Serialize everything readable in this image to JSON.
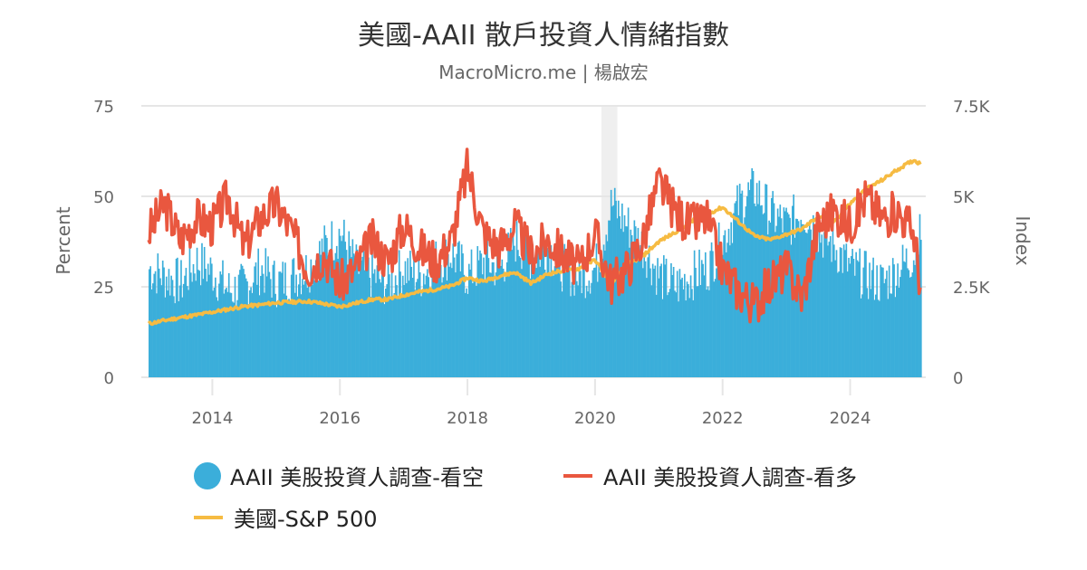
{
  "header": {
    "title": "美國-AAII 散戶投資人情緒指數",
    "subtitle": "MacroMicro.me | 楊啟宏"
  },
  "colors": {
    "bearish": "#3BAEDA",
    "bullish": "#E9573F",
    "sp500": "#F6BB42",
    "grid": "#E6E6E6",
    "recession_band": "#EFEFEF"
  },
  "legend": {
    "items": [
      {
        "label": "AAII 美股投資人調查-看空",
        "symbol": "circle",
        "color": "#3BAEDA"
      },
      {
        "label": "AAII 美股投資人調查-看多",
        "symbol": "line",
        "color": "#E9573F"
      },
      {
        "label": "美國-S&P 500",
        "symbol": "line",
        "color": "#F6BB42"
      }
    ]
  },
  "chart_data": {
    "type": "bar+line",
    "title": "美國-AAII 散戶投資人情緒指數",
    "subtitle": "MacroMicro.me | 楊啟宏",
    "xlabel": "",
    "ylabel_left": "Percent",
    "ylabel_right": "Index",
    "ylim_left": [
      0,
      75
    ],
    "ylim_right": [
      0,
      7500
    ],
    "yticks_left": [
      "0",
      "25",
      "50",
      "75"
    ],
    "yticks_right": [
      "0",
      "2.5K",
      "5K",
      "7.5K"
    ],
    "xticks": [
      "2014",
      "2016",
      "2018",
      "2020",
      "2022",
      "2024"
    ],
    "xrange": [
      2013.0,
      2025.1
    ],
    "grid": true,
    "legend_position": "bottom",
    "shaded_regions": [
      {
        "from": 2020.1,
        "to": 2020.35,
        "label": "recession"
      }
    ],
    "series": [
      {
        "name": "AAII 美股投資人調查-看空",
        "type": "column",
        "axis": "left",
        "x": [
          2013.0,
          2013.25,
          2013.5,
          2013.75,
          2014.0,
          2014.25,
          2014.5,
          2014.75,
          2015.0,
          2015.25,
          2015.5,
          2015.75,
          2016.0,
          2016.25,
          2016.5,
          2016.75,
          2017.0,
          2017.25,
          2017.5,
          2017.75,
          2018.0,
          2018.25,
          2018.5,
          2018.75,
          2019.0,
          2019.25,
          2019.5,
          2019.75,
          2020.0,
          2020.25,
          2020.5,
          2020.75,
          2021.0,
          2021.25,
          2021.5,
          2021.75,
          2022.0,
          2022.25,
          2022.5,
          2022.75,
          2023.0,
          2023.25,
          2023.5,
          2023.75,
          2024.0,
          2024.25,
          2024.5,
          2024.75,
          2025.0,
          2025.1
        ],
        "values": [
          30,
          28,
          26,
          32,
          29,
          24,
          25,
          30,
          26,
          28,
          30,
          36,
          40,
          30,
          28,
          26,
          30,
          28,
          32,
          34,
          28,
          32,
          30,
          38,
          33,
          36,
          30,
          28,
          30,
          48,
          42,
          36,
          28,
          25,
          28,
          30,
          38,
          48,
          52,
          45,
          42,
          46,
          40,
          36,
          30,
          28,
          26,
          30,
          34,
          40
        ]
      },
      {
        "name": "AAII 美股投資人調查-看多",
        "type": "line",
        "axis": "left",
        "x": [
          2013.0,
          2013.25,
          2013.5,
          2013.75,
          2014.0,
          2014.25,
          2014.5,
          2014.75,
          2015.0,
          2015.25,
          2015.5,
          2015.75,
          2016.0,
          2016.25,
          2016.5,
          2016.75,
          2017.0,
          2017.25,
          2017.5,
          2017.75,
          2018.0,
          2018.25,
          2018.5,
          2018.75,
          2019.0,
          2019.25,
          2019.5,
          2019.75,
          2020.0,
          2020.25,
          2020.5,
          2020.75,
          2021.0,
          2021.25,
          2021.5,
          2021.75,
          2022.0,
          2022.25,
          2022.5,
          2022.75,
          2023.0,
          2023.25,
          2023.5,
          2023.75,
          2024.0,
          2024.25,
          2024.5,
          2024.75,
          2025.0,
          2025.1
        ],
        "values": [
          40,
          48,
          38,
          44,
          42,
          50,
          36,
          44,
          48,
          40,
          30,
          34,
          26,
          30,
          38,
          32,
          42,
          36,
          32,
          38,
          58,
          40,
          36,
          42,
          34,
          38,
          34,
          30,
          40,
          26,
          30,
          38,
          54,
          46,
          42,
          44,
          30,
          24,
          20,
          26,
          30,
          22,
          42,
          46,
          42,
          50,
          44,
          46,
          40,
          26
        ]
      },
      {
        "name": "美國-S&P 500",
        "type": "line",
        "axis": "right",
        "x": [
          2013.0,
          2013.25,
          2013.5,
          2013.75,
          2014.0,
          2014.25,
          2014.5,
          2014.75,
          2015.0,
          2015.25,
          2015.5,
          2015.75,
          2016.0,
          2016.25,
          2016.5,
          2016.75,
          2017.0,
          2017.25,
          2017.5,
          2017.75,
          2018.0,
          2018.25,
          2018.5,
          2018.75,
          2019.0,
          2019.25,
          2019.5,
          2019.75,
          2020.0,
          2020.25,
          2020.5,
          2020.75,
          2021.0,
          2021.25,
          2021.5,
          2021.75,
          2022.0,
          2022.25,
          2022.5,
          2022.75,
          2023.0,
          2023.25,
          2023.5,
          2023.75,
          2024.0,
          2024.25,
          2024.5,
          2024.75,
          2025.0,
          2025.1
        ],
        "values": [
          1480,
          1570,
          1650,
          1720,
          1800,
          1880,
          1960,
          2000,
          2060,
          2080,
          2100,
          2030,
          1950,
          2050,
          2150,
          2150,
          2270,
          2360,
          2430,
          2520,
          2750,
          2650,
          2800,
          2900,
          2600,
          2850,
          2950,
          3000,
          3250,
          2600,
          3100,
          3350,
          3750,
          4000,
          4300,
          4500,
          4700,
          4300,
          3900,
          3800,
          3950,
          4100,
          4450,
          4300,
          4800,
          5200,
          5450,
          5750,
          6000,
          5900
        ]
      }
    ]
  }
}
